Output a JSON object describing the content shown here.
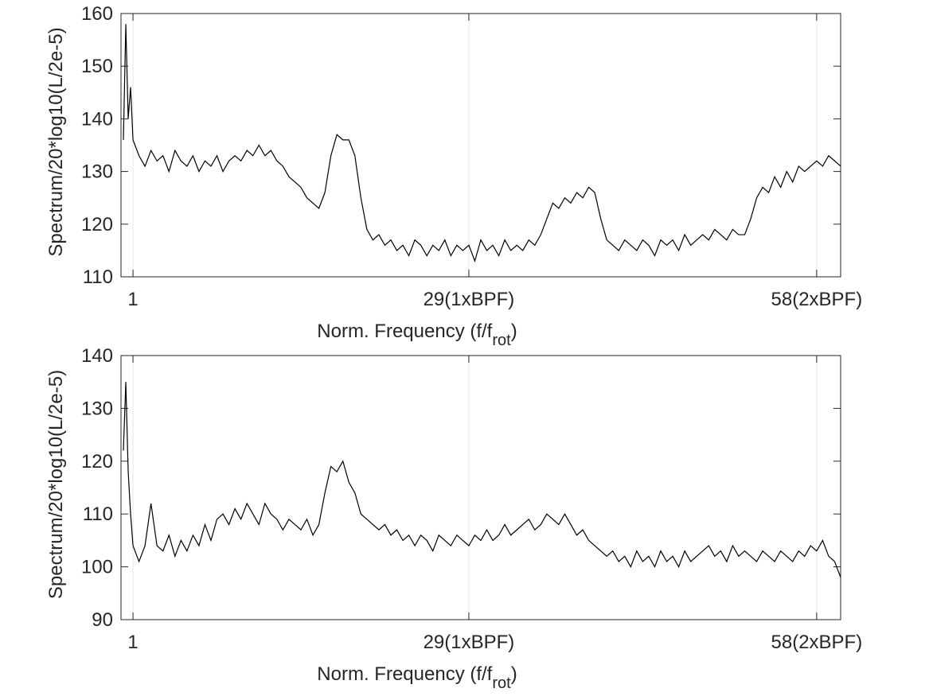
{
  "chart_data": [
    {
      "type": "line",
      "xlabel": [
        "Norm. Frequency (f/f",
        "rot",
        ")"
      ],
      "ylabel": "Spectrum/20*log10(L/2e-5)",
      "xlim": [
        0,
        60
      ],
      "ylim": [
        110,
        160
      ],
      "xticks": [
        {
          "value": 1,
          "label": "1"
        },
        {
          "value": 29,
          "label": "29(1xBPF)"
        },
        {
          "value": 58,
          "label": "58(2xBPF)"
        }
      ],
      "yticks": [
        110,
        120,
        130,
        140,
        150,
        160
      ],
      "grid": "x",
      "x": [
        0.2,
        0.4,
        0.6,
        0.8,
        1,
        1.5,
        2,
        2.5,
        3,
        3.5,
        4,
        4.5,
        5,
        5.5,
        6,
        6.5,
        7,
        7.5,
        8,
        8.5,
        9,
        9.5,
        10,
        10.5,
        11,
        11.5,
        12,
        12.5,
        13,
        13.5,
        14,
        14.5,
        15,
        15.5,
        16,
        16.5,
        17,
        17.5,
        18,
        18.5,
        19,
        19.5,
        20,
        20.5,
        21,
        21.5,
        22,
        22.5,
        23,
        23.5,
        24,
        24.5,
        25,
        25.5,
        26,
        26.5,
        27,
        27.5,
        28,
        28.5,
        29,
        29.5,
        30,
        30.5,
        31,
        31.5,
        32,
        32.5,
        33,
        33.5,
        34,
        34.5,
        35,
        35.5,
        36,
        36.5,
        37,
        37.5,
        38,
        38.5,
        39,
        39.5,
        40,
        40.5,
        41,
        41.5,
        42,
        42.5,
        43,
        43.5,
        44,
        44.5,
        45,
        45.5,
        46,
        46.5,
        47,
        47.5,
        48,
        48.5,
        49,
        49.5,
        50,
        50.5,
        51,
        51.5,
        52,
        52.5,
        53,
        53.5,
        54,
        54.5,
        55,
        55.5,
        56,
        56.5,
        57,
        57.5,
        58,
        58.5,
        59,
        59.5,
        60
      ],
      "series": [
        {
          "color": "#000000",
          "values": [
            136,
            158,
            140,
            146,
            136,
            133,
            131,
            134,
            132,
            133,
            130,
            134,
            132,
            131,
            133,
            130,
            132,
            131,
            133,
            130,
            132,
            133,
            132,
            134,
            133,
            135,
            133,
            134,
            132,
            131,
            129,
            128,
            127,
            125,
            124,
            123,
            126,
            133,
            137,
            136,
            136,
            133,
            125,
            119,
            117,
            118,
            116,
            117,
            115,
            116,
            114,
            117,
            116,
            114,
            116,
            115,
            117,
            114,
            116,
            115,
            116,
            113,
            117,
            115,
            116,
            114,
            117,
            115,
            116,
            115,
            117,
            116,
            118,
            121,
            124,
            123,
            125,
            124,
            126,
            125,
            127,
            126,
            121,
            117,
            116,
            115,
            117,
            116,
            115,
            117,
            116,
            114,
            117,
            116,
            117,
            115,
            118,
            116,
            117,
            118,
            117,
            119,
            118,
            117,
            119,
            118,
            118,
            121,
            125,
            127,
            126,
            129,
            127,
            130,
            128,
            131,
            130,
            131,
            132,
            131,
            133,
            132,
            131
          ]
        }
      ]
    },
    {
      "type": "line",
      "xlabel": [
        "Norm. Frequency (f/f",
        "rot",
        ")"
      ],
      "ylabel": "Spectrum/20*log10(L/2e-5)",
      "xlim": [
        0,
        60
      ],
      "ylim": [
        90,
        140
      ],
      "xticks": [
        {
          "value": 1,
          "label": "1"
        },
        {
          "value": 29,
          "label": "29(1xBPF)"
        },
        {
          "value": 58,
          "label": "58(2xBPF)"
        }
      ],
      "yticks": [
        90,
        100,
        110,
        120,
        130,
        140
      ],
      "grid": "x",
      "x": [
        0.2,
        0.4,
        0.6,
        0.8,
        1,
        1.5,
        2,
        2.5,
        3,
        3.5,
        4,
        4.5,
        5,
        5.5,
        6,
        6.5,
        7,
        7.5,
        8,
        8.5,
        9,
        9.5,
        10,
        10.5,
        11,
        11.5,
        12,
        12.5,
        13,
        13.5,
        14,
        14.5,
        15,
        15.5,
        16,
        16.5,
        17,
        17.5,
        18,
        18.5,
        19,
        19.5,
        20,
        20.5,
        21,
        21.5,
        22,
        22.5,
        23,
        23.5,
        24,
        24.5,
        25,
        25.5,
        26,
        26.5,
        27,
        27.5,
        28,
        28.5,
        29,
        29.5,
        30,
        30.5,
        31,
        31.5,
        32,
        32.5,
        33,
        33.5,
        34,
        34.5,
        35,
        35.5,
        36,
        36.5,
        37,
        37.5,
        38,
        38.5,
        39,
        39.5,
        40,
        40.5,
        41,
        41.5,
        42,
        42.5,
        43,
        43.5,
        44,
        44.5,
        45,
        45.5,
        46,
        46.5,
        47,
        47.5,
        48,
        48.5,
        49,
        49.5,
        50,
        50.5,
        51,
        51.5,
        52,
        52.5,
        53,
        53.5,
        54,
        54.5,
        55,
        55.5,
        56,
        56.5,
        57,
        57.5,
        58,
        58.5,
        59,
        59.5,
        60
      ],
      "series": [
        {
          "color": "#000000",
          "values": [
            122,
            135,
            118,
            110,
            104,
            101,
            104,
            112,
            104,
            103,
            106,
            102,
            105,
            103,
            106,
            104,
            108,
            105,
            109,
            110,
            108,
            111,
            109,
            112,
            110,
            108,
            112,
            110,
            109,
            107,
            109,
            108,
            107,
            109,
            106,
            108,
            114,
            119,
            118,
            120,
            116,
            114,
            110,
            109,
            108,
            107,
            108,
            106,
            107,
            105,
            106,
            104,
            106,
            105,
            103,
            106,
            105,
            104,
            106,
            105,
            104,
            106,
            105,
            107,
            105,
            106,
            108,
            106,
            107,
            108,
            109,
            107,
            108,
            110,
            109,
            108,
            110,
            108,
            106,
            107,
            105,
            104,
            103,
            102,
            103,
            101,
            102,
            100,
            103,
            101,
            102,
            100,
            103,
            101,
            102,
            100,
            103,
            101,
            102,
            103,
            104,
            102,
            103,
            101,
            104,
            102,
            103,
            102,
            101,
            103,
            102,
            101,
            103,
            102,
            101,
            103,
            102,
            104,
            103,
            105,
            102,
            101,
            98
          ]
        }
      ]
    }
  ]
}
